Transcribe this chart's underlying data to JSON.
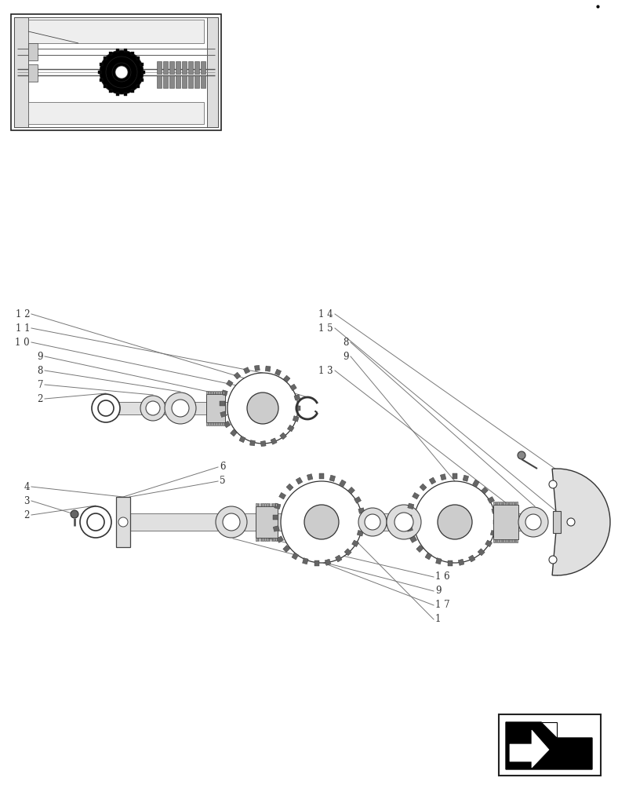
{
  "bg_color": "#ffffff",
  "fig_w": 7.88,
  "fig_h": 10.0,
  "dpi": 100
}
